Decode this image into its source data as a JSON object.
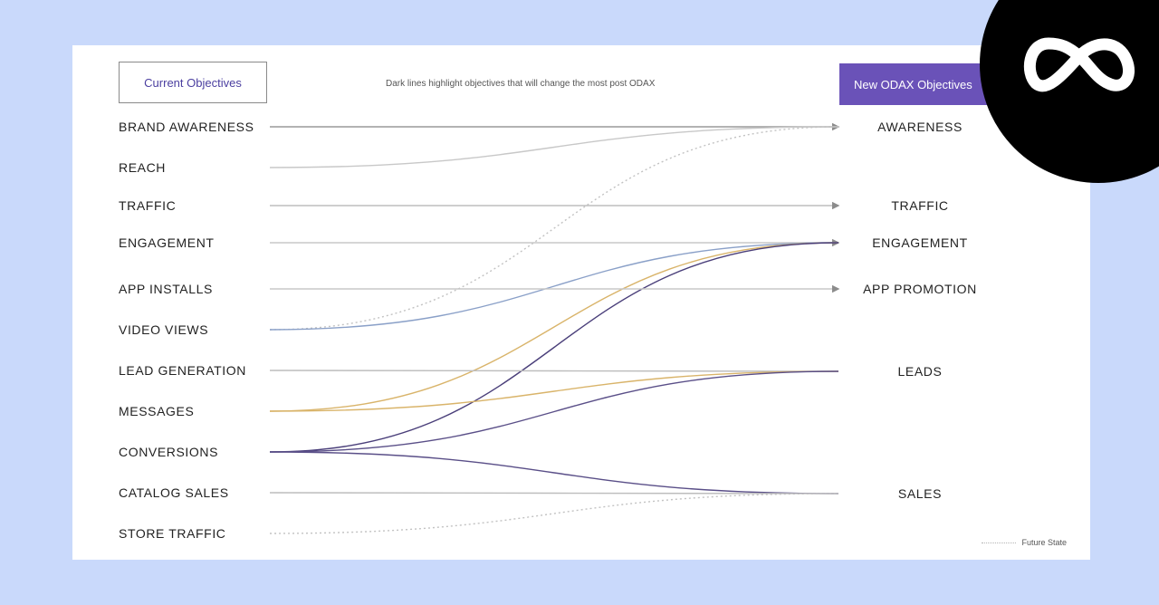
{
  "header": {
    "current_label": "Current Objectives",
    "note": "Dark lines highlight objectives that will change the most post ODAX",
    "new_label": "New ODAX Objectives"
  },
  "current_objectives": [
    "BRAND AWARENESS",
    "REACH",
    "TRAFFIC",
    "ENGAGEMENT",
    "APP INSTALLS",
    "VIDEO VIEWS",
    "LEAD GENERATION",
    "MESSAGES",
    "CONVERSIONS",
    "CATALOG SALES",
    "STORE TRAFFIC"
  ],
  "new_objectives": [
    "AWARENESS",
    "TRAFFIC",
    "ENGAGEMENT",
    "APP PROMOTION",
    "LEADS",
    "SALES"
  ],
  "flows": [
    {
      "from": "BRAND AWARENESS",
      "to": "AWARENESS",
      "style": "solid",
      "color": "#9a9a9a"
    },
    {
      "from": "REACH",
      "to": "AWARENESS",
      "style": "solid",
      "color": "#c8c8c8"
    },
    {
      "from": "VIDEO VIEWS",
      "to": "AWARENESS",
      "style": "dotted",
      "color": "#c2c2c2"
    },
    {
      "from": "TRAFFIC",
      "to": "TRAFFIC",
      "style": "solid",
      "color": "#bdbdbd"
    },
    {
      "from": "ENGAGEMENT",
      "to": "ENGAGEMENT",
      "style": "solid",
      "color": "#c8c8c8"
    },
    {
      "from": "VIDEO VIEWS",
      "to": "ENGAGEMENT",
      "style": "solid",
      "color": "#8aa0c8"
    },
    {
      "from": "MESSAGES",
      "to": "ENGAGEMENT",
      "style": "solid",
      "color": "#d9b46a"
    },
    {
      "from": "CONVERSIONS",
      "to": "ENGAGEMENT",
      "style": "solid",
      "color": "#4a3f7a"
    },
    {
      "from": "APP INSTALLS",
      "to": "APP PROMOTION",
      "style": "solid",
      "color": "#c8c8c8"
    },
    {
      "from": "LEAD GENERATION",
      "to": "LEADS",
      "style": "solid",
      "color": "#bdbdbd"
    },
    {
      "from": "MESSAGES",
      "to": "LEADS",
      "style": "solid",
      "color": "#d9b46a"
    },
    {
      "from": "CONVERSIONS",
      "to": "LEADS",
      "style": "solid",
      "color": "#5a4f88"
    },
    {
      "from": "CONVERSIONS",
      "to": "SALES",
      "style": "solid",
      "color": "#5a4f88"
    },
    {
      "from": "CATALOG SALES",
      "to": "SALES",
      "style": "solid",
      "color": "#bdbdbd"
    },
    {
      "from": "STORE TRAFFIC",
      "to": "SALES",
      "style": "dotted",
      "color": "#c2c2c2"
    }
  ],
  "legend": {
    "label": "Future State"
  },
  "logo": {
    "icon": "meta-infinity-icon",
    "background": "#000000",
    "color": "#ffffff"
  }
}
